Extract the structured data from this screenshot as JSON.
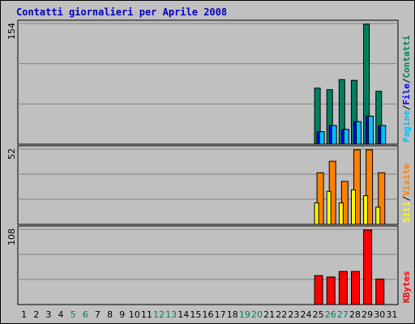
{
  "chart_data": [
    {
      "type": "bar",
      "title": "Contatti giornalieri per Aprile 2008",
      "x": [
        1,
        2,
        3,
        4,
        5,
        6,
        7,
        8,
        9,
        10,
        11,
        12,
        13,
        14,
        15,
        16,
        17,
        18,
        19,
        20,
        21,
        22,
        23,
        24,
        25,
        26,
        27,
        28,
        29,
        30,
        31
      ],
      "weekend_days": [
        5,
        6,
        12,
        13,
        19,
        20,
        26,
        27
      ],
      "ymax_label": "154",
      "legend": [
        "Pagine",
        "File",
        "Contatti"
      ],
      "series": [
        {
          "name": "Contatti",
          "color": "#008060",
          "values": [
            0,
            0,
            0,
            0,
            0,
            0,
            0,
            0,
            0,
            0,
            0,
            0,
            0,
            0,
            0,
            0,
            0,
            0,
            0,
            0,
            0,
            0,
            0,
            0,
            72,
            70,
            83,
            82,
            154,
            68,
            0
          ]
        },
        {
          "name": "File",
          "color": "#0000ff",
          "values": [
            0,
            0,
            0,
            0,
            0,
            0,
            0,
            0,
            0,
            0,
            0,
            0,
            0,
            0,
            0,
            0,
            0,
            0,
            0,
            0,
            0,
            0,
            0,
            0,
            16,
            24,
            19,
            29,
            36,
            24,
            0
          ]
        },
        {
          "name": "Pagine",
          "color": "#00c0ff",
          "values": [
            0,
            0,
            0,
            0,
            0,
            0,
            0,
            0,
            0,
            0,
            0,
            0,
            0,
            0,
            0,
            0,
            0,
            0,
            0,
            0,
            0,
            0,
            0,
            0,
            16,
            24,
            19,
            29,
            36,
            24,
            0
          ]
        }
      ]
    },
    {
      "type": "bar",
      "x": [
        1,
        2,
        3,
        4,
        5,
        6,
        7,
        8,
        9,
        10,
        11,
        12,
        13,
        14,
        15,
        16,
        17,
        18,
        19,
        20,
        21,
        22,
        23,
        24,
        25,
        26,
        27,
        28,
        29,
        30,
        31
      ],
      "ymax_label": "52",
      "legend": [
        "Siti",
        "Visite"
      ],
      "series": [
        {
          "name": "Visite",
          "color": "#ff8000",
          "values": [
            0,
            0,
            0,
            0,
            0,
            0,
            0,
            0,
            0,
            0,
            0,
            0,
            0,
            0,
            0,
            0,
            0,
            0,
            0,
            0,
            0,
            0,
            0,
            0,
            36,
            44,
            30,
            52,
            52,
            36,
            0
          ]
        },
        {
          "name": "Siti",
          "color": "#ffff00",
          "values": [
            0,
            0,
            0,
            0,
            0,
            0,
            0,
            0,
            0,
            0,
            0,
            0,
            0,
            0,
            0,
            0,
            0,
            0,
            0,
            0,
            0,
            0,
            0,
            0,
            15,
            23,
            15,
            24,
            20,
            12,
            0
          ]
        }
      ]
    },
    {
      "type": "bar",
      "x": [
        1,
        2,
        3,
        4,
        5,
        6,
        7,
        8,
        9,
        10,
        11,
        12,
        13,
        14,
        15,
        16,
        17,
        18,
        19,
        20,
        21,
        22,
        23,
        24,
        25,
        26,
        27,
        28,
        29,
        30,
        31
      ],
      "ymax_label": "108",
      "legend": [
        "KBytes"
      ],
      "series": [
        {
          "name": "KBytes",
          "color": "#ff0000",
          "values": [
            0,
            0,
            0,
            0,
            0,
            0,
            0,
            0,
            0,
            0,
            0,
            0,
            0,
            0,
            0,
            0,
            0,
            0,
            0,
            0,
            0,
            0,
            0,
            0,
            42,
            40,
            48,
            48,
            108,
            37,
            0
          ]
        }
      ]
    }
  ]
}
